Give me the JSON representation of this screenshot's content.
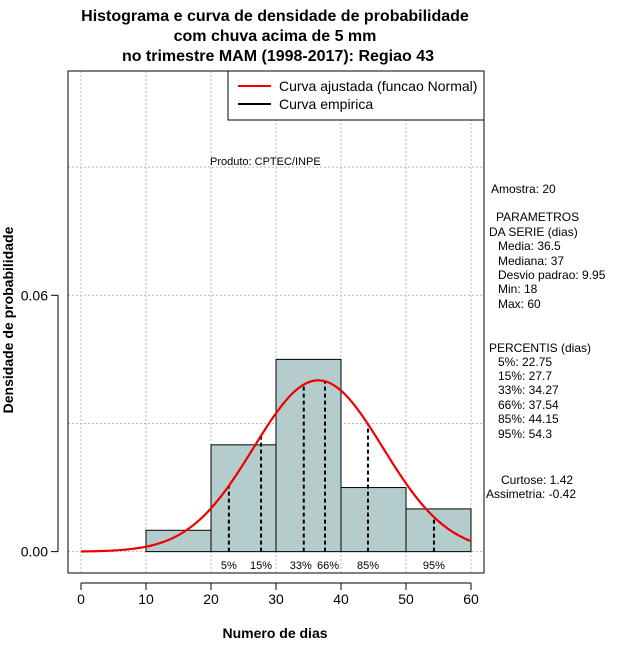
{
  "chart_data": {
    "type": "bar",
    "title": [
      "Histograma e curva de densidade de probabilidade",
      "com chuva acima de 5 mm",
      "no trimestre MAM (1998-2017): Regiao 43"
    ],
    "xlabel": "Numero de dias",
    "ylabel": "Densidade de probabilidade",
    "xlim": [
      -2,
      62
    ],
    "ylim": [
      -0.005,
      0.1125
    ],
    "xticks": [
      0,
      10,
      20,
      30,
      40,
      50,
      60
    ],
    "yticks": [
      0.0,
      0.06
    ],
    "ytick_labels": [
      "0.00",
      "0.06"
    ],
    "bins": [
      {
        "from": 10,
        "to": 20,
        "density": 0.005
      },
      {
        "from": 20,
        "to": 30,
        "density": 0.025
      },
      {
        "from": 30,
        "to": 40,
        "density": 0.045
      },
      {
        "from": 40,
        "to": 50,
        "density": 0.015
      },
      {
        "from": 50,
        "to": 60,
        "density": 0.01
      }
    ],
    "normal_curve": {
      "mean": 36.5,
      "sd": 9.95,
      "from": 0,
      "to": 60,
      "color": "#ee0000"
    },
    "bar_color": "#b4cccc",
    "percentile_lines": [
      {
        "label": "5%",
        "value": 22.75
      },
      {
        "label": "15%",
        "value": 27.7
      },
      {
        "label": "33%",
        "value": 34.27
      },
      {
        "label": "66%",
        "value": 37.54
      },
      {
        "label": "85%",
        "value": 44.15
      },
      {
        "label": "95%",
        "value": 54.3
      }
    ],
    "legend": {
      "position": "top-right",
      "entries": [
        {
          "label": "Curva ajustada (funcao Normal)",
          "color": "#ee0000"
        },
        {
          "label": "Curva empirica",
          "color": "#000000"
        }
      ]
    },
    "annotation": "Produto: CPTEC/INPE",
    "grid": true
  },
  "stats": {
    "amostra": "Amostra: 20",
    "param_title_1": "PARAMETROS",
    "param_title_2": "DA SERIE (dias)",
    "media": "Media: 36.5",
    "mediana": "Mediana: 37",
    "desvio": "Desvio padrao: 9.95",
    "min": "Min: 18",
    "max": "Max: 60",
    "perc_title": "PERCENTIS (dias)",
    "p5": "5%: 22.75",
    "p15": "15%: 27.7",
    "p33": "33%: 34.27",
    "p66": "66%: 37.54",
    "p85": "85%: 44.15",
    "p95": "95%: 54.3",
    "curtose": "Curtose: 1.42",
    "assimetria": "Assimetria: -0.42"
  }
}
